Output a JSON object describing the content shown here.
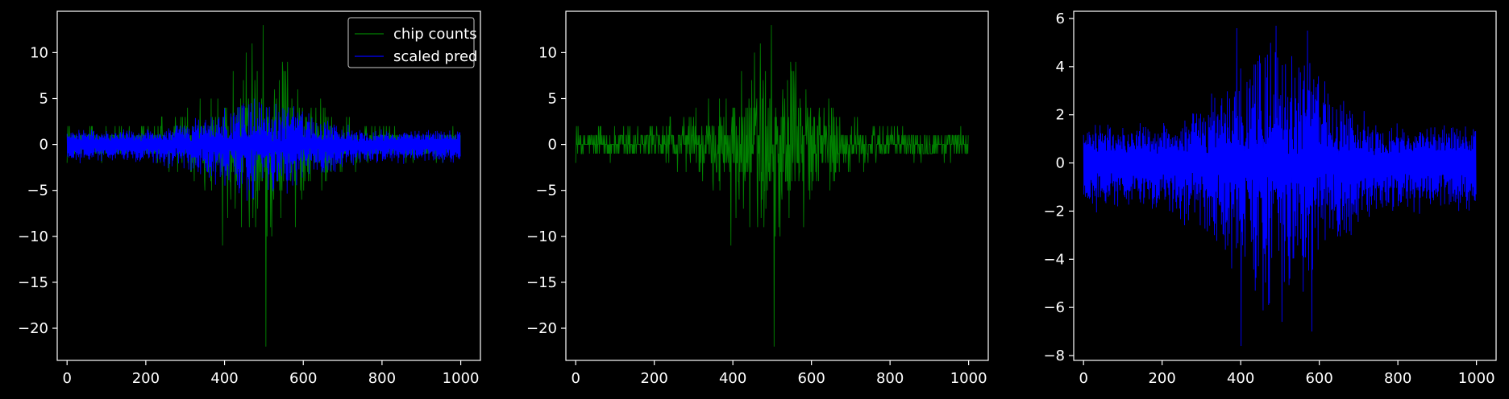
{
  "chart_data": [
    {
      "type": "line",
      "panel": "left",
      "xlim": [
        -25,
        1050
      ],
      "ylim": [
        -23.5,
        14.5
      ],
      "xticks": [
        0,
        200,
        400,
        600,
        800,
        1000
      ],
      "yticks": [
        -20,
        -15,
        -10,
        -5,
        0,
        5,
        10
      ],
      "legend": {
        "placement": "top-right",
        "entries": [
          "chip counts",
          "scaled pred"
        ]
      },
      "series": [
        {
          "name": "chip counts",
          "color": "#008000",
          "kind": "counts",
          "n": 1000,
          "spikes": [
            [
              498,
              13
            ],
            [
              505,
              -22
            ],
            [
              395,
              -11
            ],
            [
              470,
              11
            ],
            [
              520,
              -10
            ],
            [
              580,
              -9
            ],
            [
              455,
              10
            ],
            [
              560,
              9
            ]
          ]
        },
        {
          "name": "scaled pred",
          "color": "#0000ff",
          "kind": "pred-scaled",
          "n": 1000
        }
      ]
    },
    {
      "type": "line",
      "panel": "middle",
      "xlim": [
        -25,
        1050
      ],
      "ylim": [
        -23.5,
        14.5
      ],
      "xticks": [
        0,
        200,
        400,
        600,
        800,
        1000
      ],
      "yticks": [
        -20,
        -15,
        -10,
        -5,
        0,
        5,
        10
      ],
      "series": [
        {
          "color": "#008000",
          "kind": "counts",
          "n": 1000,
          "spikes": [
            [
              498,
              13
            ],
            [
              505,
              -22
            ],
            [
              395,
              -11
            ],
            [
              470,
              11
            ],
            [
              520,
              -10
            ],
            [
              580,
              -9
            ],
            [
              455,
              10
            ],
            [
              560,
              9
            ]
          ]
        }
      ]
    },
    {
      "type": "line",
      "panel": "right",
      "xlim": [
        -25,
        1050
      ],
      "ylim": [
        -8.2,
        6.3
      ],
      "xticks": [
        0,
        200,
        400,
        600,
        800,
        1000
      ],
      "yticks": [
        -8,
        -6,
        -4,
        -2,
        0,
        2,
        4,
        6
      ],
      "series": [
        {
          "color": "#0000ff",
          "kind": "pred",
          "n": 1000,
          "peaks": [
            [
              390,
              5.6
            ],
            [
              490,
              5.7
            ],
            [
              570,
              5.5
            ],
            [
              400,
              -7.6
            ],
            [
              505,
              -6.6
            ],
            [
              580,
              -7.0
            ]
          ]
        }
      ]
    }
  ]
}
